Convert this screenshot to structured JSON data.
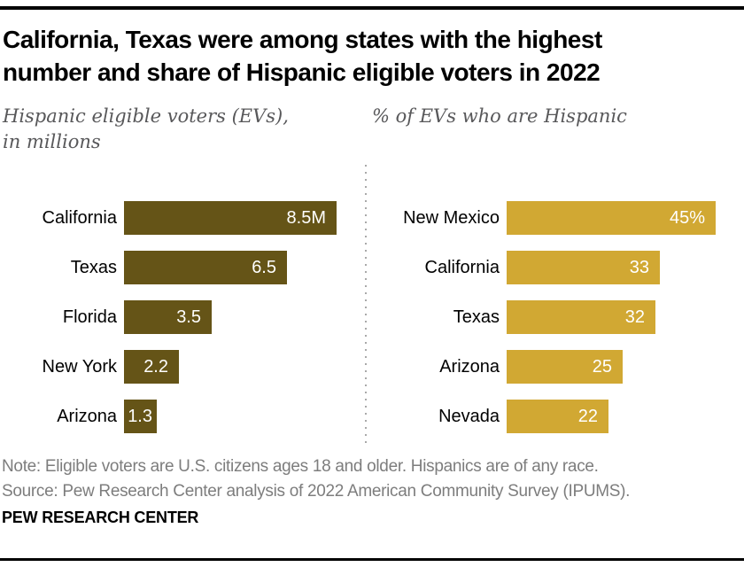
{
  "header": {
    "title_line1": "California, Texas were among states with the highest",
    "title_line2": "number and share of Hispanic eligible voters in 2022"
  },
  "subtitle_left": {
    "line1": "Hispanic eligible voters (EVs),",
    "line2": "in millions"
  },
  "subtitle_right": "% of EVs who are Hispanic",
  "colors": {
    "left_bar_olive": "#655417",
    "right_bar_gold": "#d1a833",
    "subtitle_gray": "#58585a",
    "note_gray": "#7d7d7d"
  },
  "chart_data": [
    {
      "type": "bar",
      "orientation": "horizontal",
      "title": "Hispanic eligible voters (EVs), in millions",
      "categories": [
        "California",
        "Texas",
        "Florida",
        "New York",
        "Arizona"
      ],
      "values": [
        8.5,
        6.5,
        3.5,
        2.2,
        1.3
      ],
      "value_labels": [
        "8.5M",
        "6.5",
        "3.5",
        "2.2",
        "1.3"
      ],
      "unit": "millions of eligible voters",
      "bar_color": "#655417",
      "xlim": [
        0,
        8.5
      ],
      "grid": false,
      "legend": false
    },
    {
      "type": "bar",
      "orientation": "horizontal",
      "title": "% of EVs who are Hispanic",
      "categories": [
        "New Mexico",
        "California",
        "Texas",
        "Arizona",
        "Nevada"
      ],
      "values": [
        45,
        33,
        32,
        25,
        22
      ],
      "value_labels": [
        "45%",
        "33",
        "32",
        "25",
        "22"
      ],
      "unit": "percent of eligible voters",
      "bar_color": "#d1a833",
      "xlim": [
        0,
        45
      ],
      "grid": false,
      "legend": false
    }
  ],
  "footer": {
    "note": "Note: Eligible voters are U.S. citizens ages 18 and older. Hispanics are of any race.",
    "source": "Source: Pew Research Center analysis of 2022 American Community Survey (IPUMS).",
    "brand": "PEW RESEARCH CENTER"
  }
}
